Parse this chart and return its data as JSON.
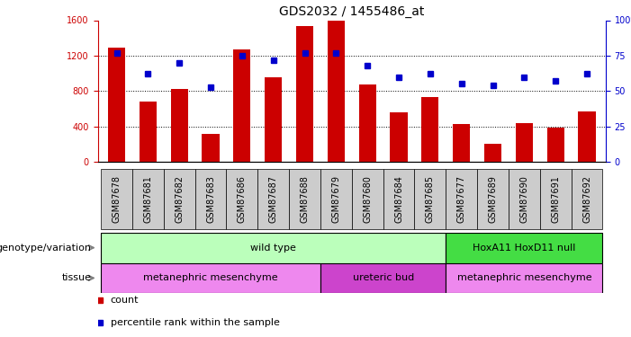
{
  "title": "GDS2032 / 1455486_at",
  "samples": [
    "GSM87678",
    "GSM87681",
    "GSM87682",
    "GSM87683",
    "GSM87686",
    "GSM87687",
    "GSM87688",
    "GSM87679",
    "GSM87680",
    "GSM87684",
    "GSM87685",
    "GSM87677",
    "GSM87689",
    "GSM87690",
    "GSM87691",
    "GSM87692"
  ],
  "counts": [
    1290,
    680,
    820,
    320,
    1270,
    960,
    1530,
    1590,
    870,
    560,
    730,
    430,
    200,
    440,
    390,
    570
  ],
  "percentiles": [
    77,
    62,
    70,
    53,
    75,
    72,
    77,
    77,
    68,
    60,
    62,
    55,
    54,
    60,
    57,
    62
  ],
  "ylim_left": [
    0,
    1600
  ],
  "ylim_right": [
    0,
    100
  ],
  "yticks_left": [
    0,
    400,
    800,
    1200,
    1600
  ],
  "yticks_right": [
    0,
    25,
    50,
    75,
    100
  ],
  "bar_color": "#cc0000",
  "dot_color": "#0000cc",
  "bg_color": "#ffffff",
  "xtick_bg": "#cccccc",
  "genotype_groups": [
    {
      "label": "wild type",
      "start": 0,
      "end": 11,
      "color": "#bbffbb"
    },
    {
      "label": "HoxA11 HoxD11 null",
      "start": 11,
      "end": 16,
      "color": "#44dd44"
    }
  ],
  "tissue_groups": [
    {
      "label": "metanephric mesenchyme",
      "start": 0,
      "end": 7,
      "color": "#ee88ee"
    },
    {
      "label": "ureteric bud",
      "start": 7,
      "end": 11,
      "color": "#cc44cc"
    },
    {
      "label": "metanephric mesenchyme",
      "start": 11,
      "end": 16,
      "color": "#ee88ee"
    }
  ],
  "legend_count_label": "count",
  "legend_pct_label": "percentile rank within the sample",
  "geno_label": "genotype/variation",
  "tissue_label": "tissue",
  "title_fontsize": 10,
  "tick_fontsize": 7,
  "label_fontsize": 8,
  "annotation_fontsize": 8
}
